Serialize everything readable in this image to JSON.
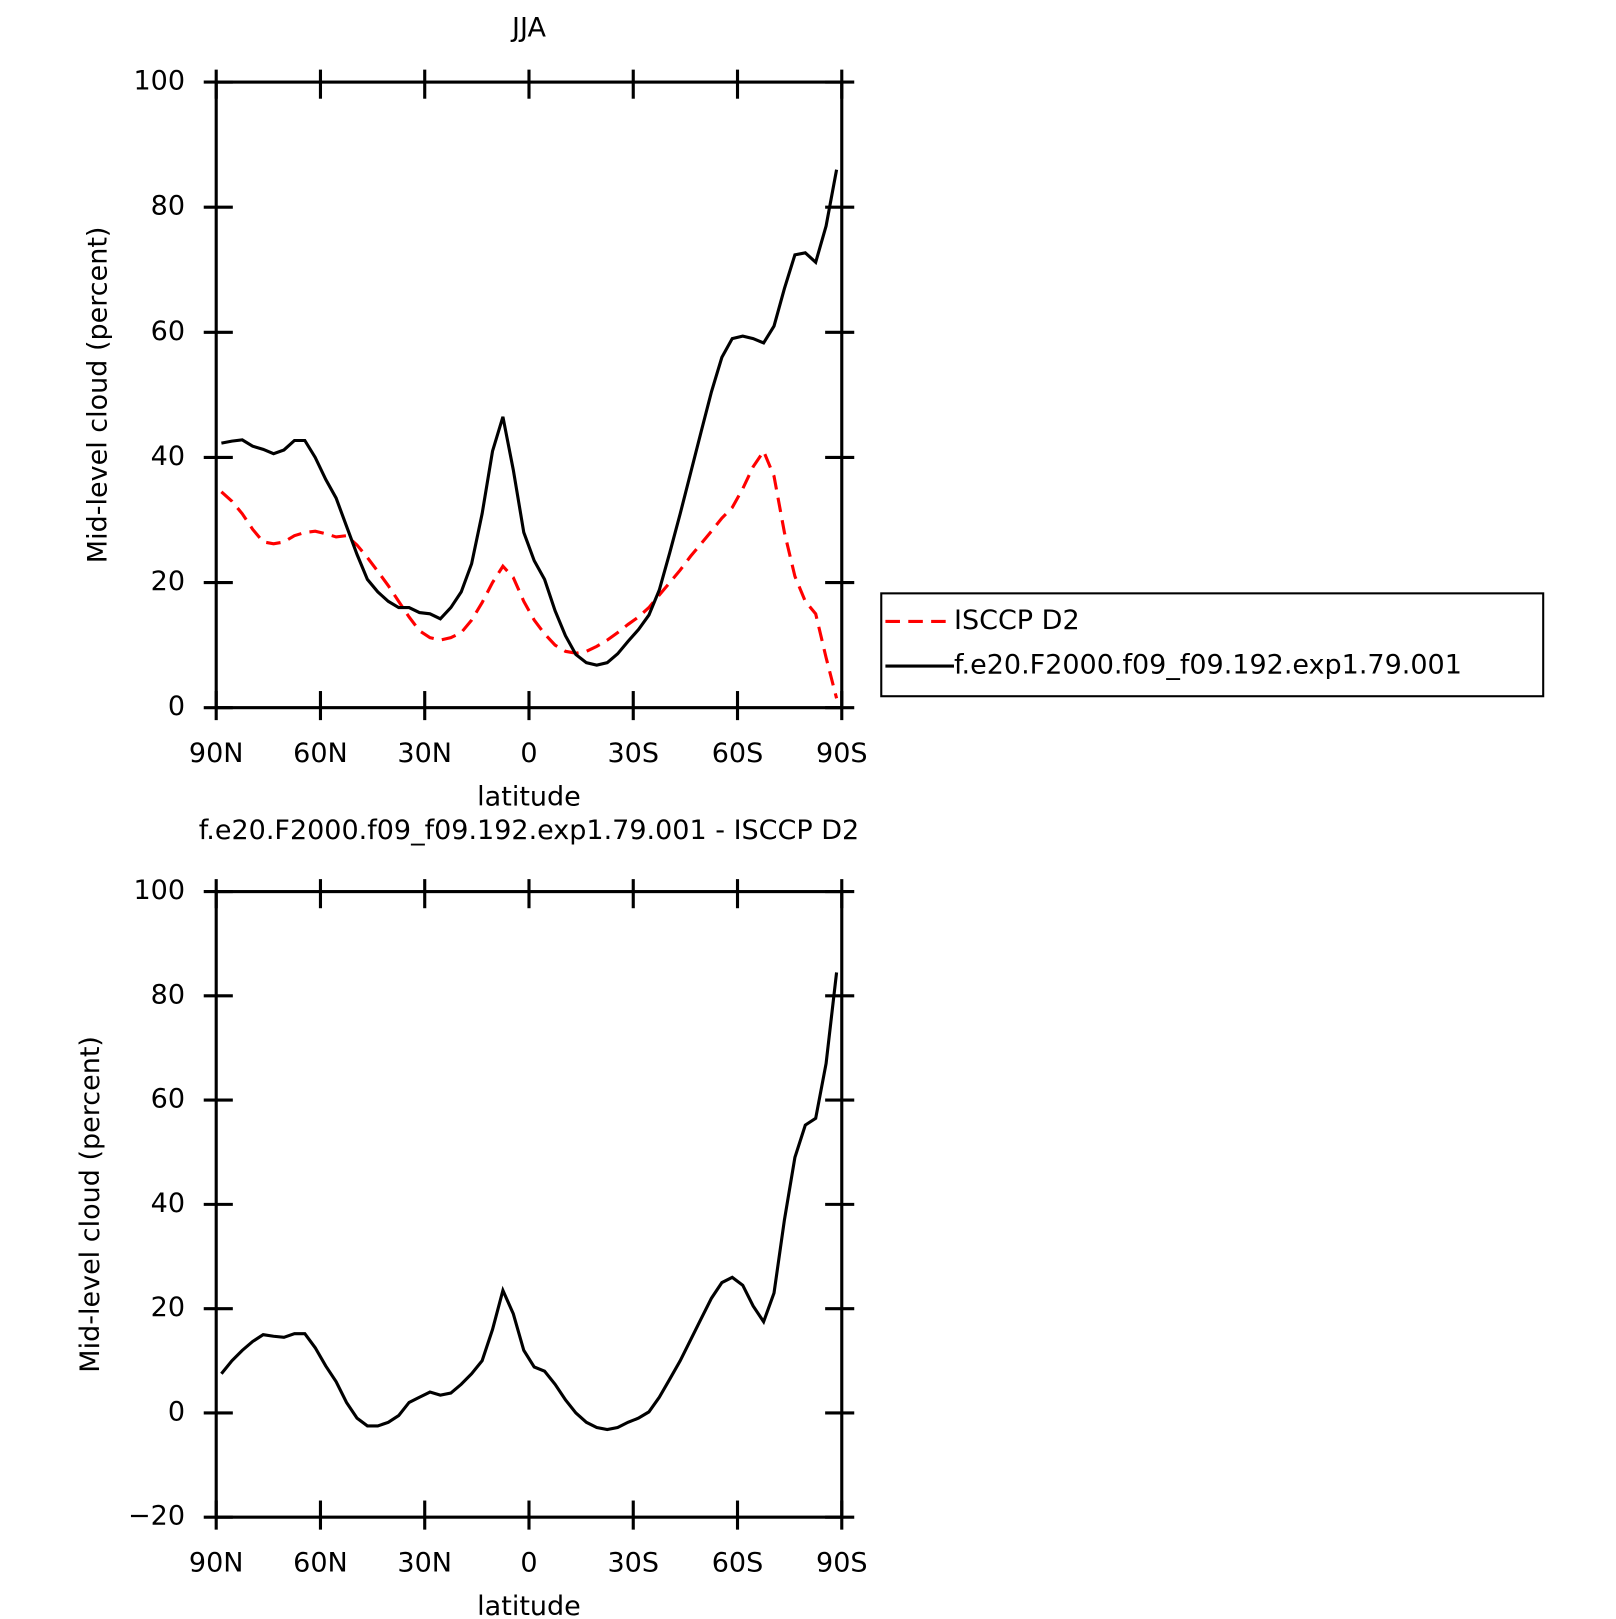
{
  "chart_data": [
    {
      "type": "line",
      "title": "JJA",
      "xlabel": "latitude",
      "ylabel": "Mid-level cloud (percent)",
      "x": [
        88.5,
        85.5,
        82.5,
        79.5,
        76.5,
        73.5,
        70.5,
        67.5,
        64.5,
        61.5,
        58.5,
        55.5,
        52.5,
        49.5,
        46.5,
        43.5,
        40.5,
        37.5,
        34.5,
        31.5,
        28.5,
        25.5,
        22.5,
        19.5,
        16.5,
        13.5,
        10.5,
        7.5,
        4.5,
        1.5,
        -1.5,
        -4.5,
        -7.5,
        -10.5,
        -13.5,
        -16.5,
        -19.5,
        -22.5,
        -25.5,
        -28.5,
        -31.5,
        -34.5,
        -37.5,
        -40.5,
        -43.5,
        -46.5,
        -49.5,
        -52.5,
        -55.5,
        -58.5,
        -61.5,
        -64.5,
        -67.5,
        -70.5,
        -73.5,
        -76.5,
        -79.5,
        -82.5,
        -85.5,
        -88.5
      ],
      "series": [
        {
          "name": "ISCCP D2",
          "color": "#ff0000",
          "style": "dashed",
          "values": [
            34.5,
            33,
            31,
            28.5,
            26.5,
            26.2,
            26.5,
            27.5,
            28,
            28.2,
            27.8,
            27.3,
            27.5,
            26,
            24,
            21.8,
            19.5,
            17,
            14.5,
            12.3,
            11.2,
            10.8,
            11.2,
            12,
            14,
            16.8,
            20,
            22.6,
            20.8,
            17,
            14,
            11.8,
            10,
            9,
            8.7,
            9,
            9.8,
            10.8,
            12,
            13.3,
            14.5,
            16,
            18,
            20,
            22,
            24.2,
            26.2,
            28.2,
            30.3,
            32,
            35,
            38.5,
            41,
            37,
            28,
            21,
            17,
            15,
            8,
            1.5
          ]
        },
        {
          "name": "f.e20.F2000.f09_f09.192.exp1.79.001",
          "color": "#000000",
          "style": "solid",
          "values": [
            42.3,
            42.6,
            42.8,
            41.8,
            41.3,
            40.6,
            41.2,
            42.7,
            42.7,
            40,
            36.5,
            33.5,
            29,
            24.5,
            20.5,
            18.5,
            17,
            16,
            16,
            15.2,
            15,
            14.2,
            16,
            18.5,
            23,
            31,
            41,
            46.5,
            38,
            28,
            23.5,
            20.5,
            15.5,
            11.5,
            8.5,
            7.2,
            6.8,
            7.2,
            8.6,
            10.6,
            12.5,
            14.8,
            18.8,
            24.8,
            31,
            37.5,
            44,
            50.5,
            56,
            59,
            59.4,
            59,
            58.3,
            61,
            67,
            72.4,
            72.7,
            71.2,
            77,
            86
          ]
        }
      ],
      "xlim": [
        90,
        -90
      ],
      "xticks": [
        {
          "value": 90,
          "label": "90N"
        },
        {
          "value": 60,
          "label": "60N"
        },
        {
          "value": 30,
          "label": "30N"
        },
        0,
        {
          "value": -30,
          "label": "30S"
        },
        {
          "value": -60,
          "label": "60S"
        },
        {
          "value": -90,
          "label": "90S"
        }
      ],
      "ylim": [
        0,
        100
      ],
      "yticks": [
        0,
        20,
        40,
        60,
        80,
        100
      ],
      "legend": "right"
    },
    {
      "type": "line",
      "title": "f.e20.F2000.f09_f09.192.exp1.79.001 - ISCCP D2",
      "xlabel": "latitude",
      "ylabel": "Mid-level cloud (percent)",
      "x": [
        88.5,
        85.5,
        82.5,
        79.5,
        76.5,
        73.5,
        70.5,
        67.5,
        64.5,
        61.5,
        58.5,
        55.5,
        52.5,
        49.5,
        46.5,
        43.5,
        40.5,
        37.5,
        34.5,
        31.5,
        28.5,
        25.5,
        22.5,
        19.5,
        16.5,
        13.5,
        10.5,
        7.5,
        4.5,
        1.5,
        -1.5,
        -4.5,
        -7.5,
        -10.5,
        -13.5,
        -16.5,
        -19.5,
        -22.5,
        -25.5,
        -28.5,
        -31.5,
        -34.5,
        -37.5,
        -40.5,
        -43.5,
        -46.5,
        -49.5,
        -52.5,
        -55.5,
        -58.5,
        -61.5,
        -64.5,
        -67.5,
        -70.5,
        -73.5,
        -76.5,
        -79.5,
        -82.5,
        -85.5,
        -88.5
      ],
      "color": "#000000",
      "values": [
        7.5,
        10,
        12,
        13.7,
        15,
        14.7,
        14.5,
        15.2,
        15.2,
        12.5,
        9,
        6,
        2,
        -1,
        -2.5,
        -2.5,
        -1.8,
        -0.5,
        2,
        3,
        4,
        3.4,
        3.8,
        5.5,
        7.5,
        10,
        16,
        23.5,
        19,
        12,
        8.8,
        8,
        5.5,
        2.5,
        0,
        -1.8,
        -2.8,
        -3.2,
        -2.8,
        -1.8,
        -1,
        0.2,
        3,
        6.5,
        10,
        14,
        18,
        22,
        25,
        26,
        24.5,
        20.5,
        17.5,
        23,
        37,
        49,
        55.2,
        56.5,
        67,
        84.5
      ],
      "xlim": [
        90,
        -90
      ],
      "xticks": [
        {
          "value": 90,
          "label": "90N"
        },
        {
          "value": 60,
          "label": "60N"
        },
        {
          "value": 30,
          "label": "30N"
        },
        0,
        {
          "value": -30,
          "label": "30S"
        },
        {
          "value": -60,
          "label": "60S"
        },
        {
          "value": -90,
          "label": "90S"
        }
      ],
      "ylim": [
        -20,
        100
      ],
      "yticks": [
        {
          "value": -20,
          "label": "−20"
        },
        0,
        20,
        40,
        60,
        80,
        100
      ]
    }
  ]
}
